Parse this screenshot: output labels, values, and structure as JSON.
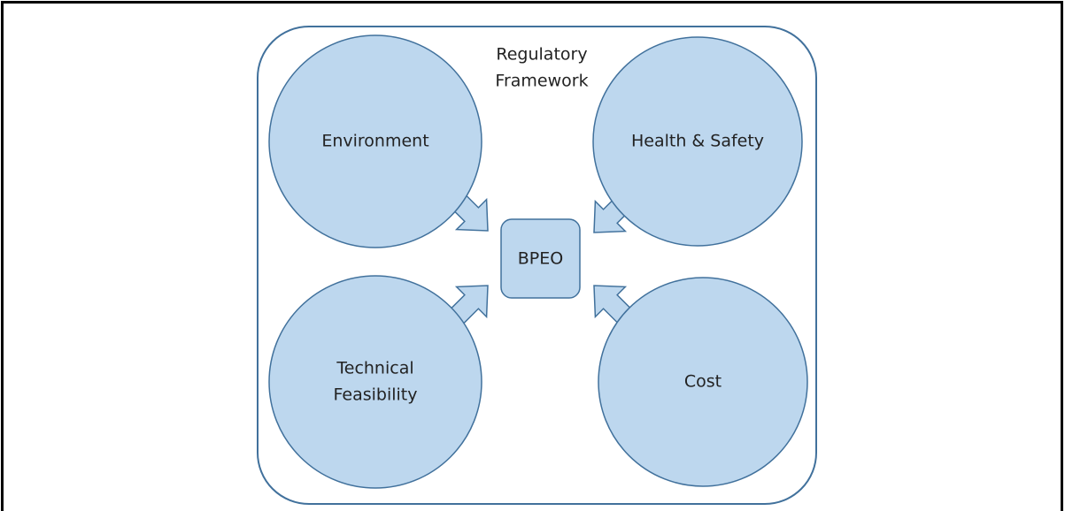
{
  "frame": {
    "label_lines": [
      "Regulatory",
      "Framework"
    ]
  },
  "center": {
    "label": "BPEO"
  },
  "nodes": [
    {
      "label_lines": [
        "Environment"
      ]
    },
    {
      "label_lines": [
        "Health & Safety"
      ]
    },
    {
      "label_lines": [
        "Technical",
        "Feasibility"
      ]
    },
    {
      "label_lines": [
        "Cost"
      ]
    }
  ]
}
